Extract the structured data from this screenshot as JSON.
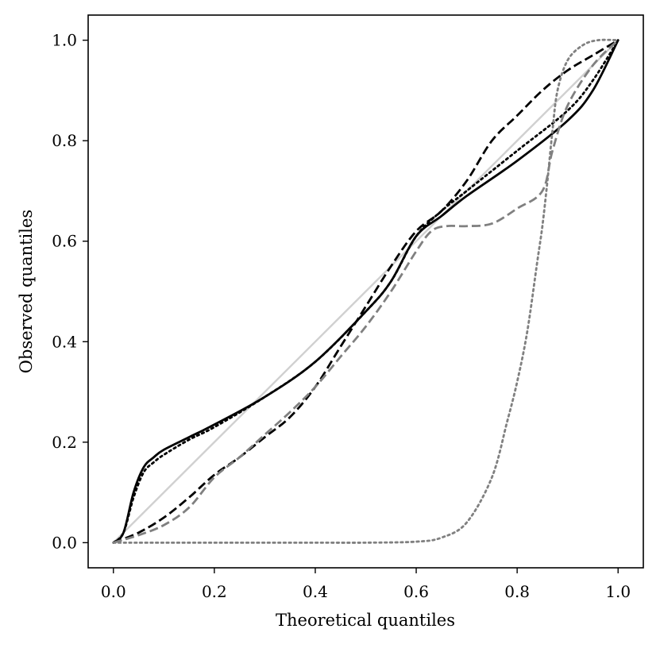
{
  "chart_data": {
    "type": "line",
    "title": "",
    "xlabel": "Theoretical quantiles",
    "ylabel": "Observed quantiles",
    "xlim": [
      -0.05,
      1.05
    ],
    "ylim": [
      -0.05,
      1.05
    ],
    "x_ticks": [
      "0.0",
      "0.2",
      "0.4",
      "0.6",
      "0.8",
      "1.0"
    ],
    "y_ticks": [
      "0.0",
      "0.2",
      "0.4",
      "0.6",
      "0.8",
      "1.0"
    ],
    "grid": false,
    "legend": "none",
    "series": [
      {
        "color": "#d0d0d0",
        "dash": "solid",
        "x": [
          0.0,
          1.0
        ],
        "y": [
          0.0,
          1.0
        ]
      },
      {
        "color": "#000000",
        "dash": "solid",
        "x": [
          0.0,
          0.02,
          0.04,
          0.06,
          0.08,
          0.1,
          0.15,
          0.2,
          0.3,
          0.4,
          0.5,
          0.55,
          0.6,
          0.65,
          0.7,
          0.8,
          0.9,
          0.95,
          1.0
        ],
        "y": [
          0.0,
          0.02,
          0.1,
          0.15,
          0.17,
          0.185,
          0.21,
          0.235,
          0.29,
          0.36,
          0.46,
          0.52,
          0.61,
          0.65,
          0.69,
          0.76,
          0.84,
          0.9,
          1.0
        ]
      },
      {
        "color": "#000000",
        "dash": "dotted",
        "x": [
          0.0,
          0.02,
          0.04,
          0.06,
          0.08,
          0.1,
          0.15,
          0.2,
          0.3,
          0.4,
          0.5,
          0.55,
          0.6,
          0.65,
          0.7,
          0.8,
          0.9,
          0.95,
          1.0
        ],
        "y": [
          0.0,
          0.02,
          0.09,
          0.14,
          0.16,
          0.175,
          0.205,
          0.23,
          0.29,
          0.36,
          0.46,
          0.52,
          0.61,
          0.66,
          0.7,
          0.78,
          0.86,
          0.92,
          1.0
        ]
      },
      {
        "color": "#000000",
        "dash": "dashed",
        "x": [
          0.0,
          0.05,
          0.1,
          0.15,
          0.2,
          0.25,
          0.3,
          0.35,
          0.4,
          0.45,
          0.5,
          0.55,
          0.6,
          0.65,
          0.7,
          0.75,
          0.8,
          0.85,
          0.9,
          0.95,
          1.0
        ],
        "y": [
          0.0,
          0.02,
          0.05,
          0.09,
          0.135,
          0.17,
          0.21,
          0.25,
          0.31,
          0.39,
          0.47,
          0.55,
          0.62,
          0.66,
          0.72,
          0.8,
          0.85,
          0.9,
          0.94,
          0.97,
          1.0
        ]
      },
      {
        "color": "#808080",
        "dash": "dashed",
        "x": [
          0.0,
          0.05,
          0.1,
          0.15,
          0.2,
          0.25,
          0.3,
          0.35,
          0.4,
          0.45,
          0.5,
          0.55,
          0.6,
          0.63,
          0.66,
          0.7,
          0.75,
          0.8,
          0.85,
          0.87,
          0.9,
          0.95,
          1.0
        ],
        "y": [
          0.0,
          0.015,
          0.035,
          0.07,
          0.13,
          0.17,
          0.215,
          0.26,
          0.31,
          0.37,
          0.43,
          0.5,
          0.58,
          0.62,
          0.63,
          0.63,
          0.635,
          0.665,
          0.7,
          0.78,
          0.87,
          0.95,
          1.0
        ]
      },
      {
        "color": "#808080",
        "dash": "dotted",
        "x": [
          0.0,
          0.1,
          0.2,
          0.3,
          0.4,
          0.5,
          0.6,
          0.65,
          0.7,
          0.75,
          0.78,
          0.8,
          0.82,
          0.84,
          0.85,
          0.86,
          0.87,
          0.88,
          0.9,
          0.93,
          0.96,
          1.0
        ],
        "y": [
          0.0,
          0.0,
          0.0,
          0.0,
          0.0,
          0.0,
          0.002,
          0.01,
          0.04,
          0.13,
          0.24,
          0.32,
          0.42,
          0.56,
          0.63,
          0.72,
          0.82,
          0.9,
          0.96,
          0.99,
          1.0,
          1.0
        ]
      }
    ]
  }
}
